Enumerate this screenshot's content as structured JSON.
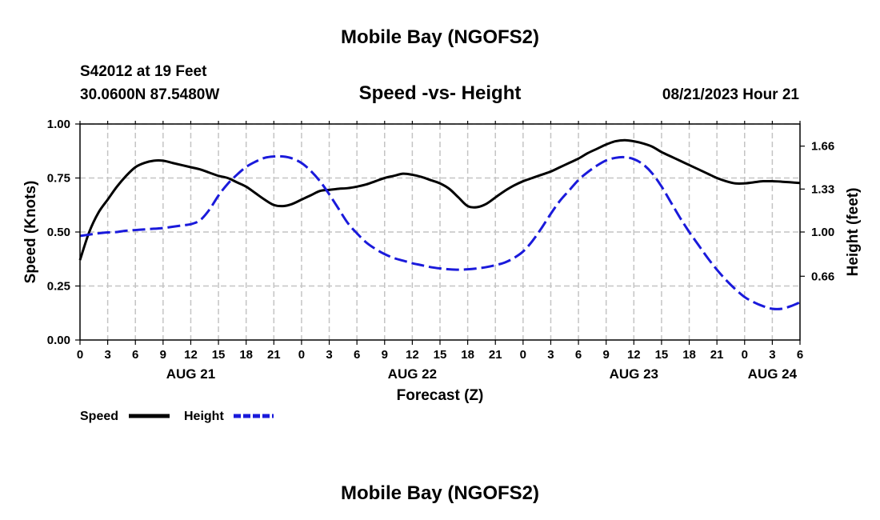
{
  "chart_data": {
    "type": "line",
    "title": "Mobile Bay (NGOFS2)",
    "station": "S42012 at 19 Feet",
    "location": "30.0600N  87.5480W",
    "subtitle": "Speed -vs- Height",
    "date": "08/21/2023 Hour 21",
    "bottom_title": "Mobile Bay (NGOFS2)",
    "xlabel": "Forecast (Z)",
    "ylabel_left": "Speed (Knots)",
    "ylabel_right": "Height (feet)",
    "x_unit": "hours since 08/21 00Z",
    "xlim": [
      0,
      78
    ],
    "ylim_left": [
      0,
      1
    ],
    "ylim_right": [
      0.17,
      1.83
    ],
    "x_ticks": [
      0,
      3,
      6,
      9,
      12,
      15,
      18,
      21,
      24,
      27,
      30,
      33,
      36,
      39,
      42,
      45,
      48,
      51,
      54,
      57,
      60,
      63,
      66,
      69,
      72,
      75,
      78
    ],
    "x_tick_labels": [
      "0",
      "3",
      "6",
      "9",
      "12",
      "15",
      "18",
      "21",
      "0",
      "3",
      "6",
      "9",
      "12",
      "15",
      "18",
      "21",
      "0",
      "3",
      "6",
      "9",
      "12",
      "15",
      "18",
      "21",
      "0",
      "3",
      "6"
    ],
    "day_labels": [
      {
        "x": 12,
        "label": "AUG 21"
      },
      {
        "x": 36,
        "label": "AUG 22"
      },
      {
        "x": 60,
        "label": "AUG 23"
      },
      {
        "x": 75,
        "label": "AUG 24"
      }
    ],
    "y_left_ticks": [
      0,
      0.25,
      0.5,
      0.75,
      1.0
    ],
    "y_left_tick_labels": [
      "0.00",
      "0.25",
      "0.50",
      "0.75",
      "1.00"
    ],
    "y_right_ticks": [
      0.66,
      1.0,
      1.33,
      1.66
    ],
    "y_right_tick_labels": [
      "0.66",
      "1.00",
      "1.33",
      "1.66"
    ],
    "grid": true,
    "legend_position": "bottom-left",
    "series": [
      {
        "name": "Speed",
        "axis": "left",
        "color": "#000000",
        "style": "solid",
        "points": [
          [
            0,
            0.37
          ],
          [
            1,
            0.5
          ],
          [
            2,
            0.59
          ],
          [
            3,
            0.65
          ],
          [
            4,
            0.71
          ],
          [
            5,
            0.76
          ],
          [
            6,
            0.8
          ],
          [
            7,
            0.82
          ],
          [
            8,
            0.83
          ],
          [
            9,
            0.83
          ],
          [
            10,
            0.82
          ],
          [
            11,
            0.81
          ],
          [
            12,
            0.8
          ],
          [
            13,
            0.79
          ],
          [
            14,
            0.775
          ],
          [
            15,
            0.76
          ],
          [
            16,
            0.75
          ],
          [
            17,
            0.73
          ],
          [
            18,
            0.71
          ],
          [
            19,
            0.68
          ],
          [
            20,
            0.65
          ],
          [
            21,
            0.625
          ],
          [
            22,
            0.62
          ],
          [
            23,
            0.63
          ],
          [
            24,
            0.65
          ],
          [
            25,
            0.67
          ],
          [
            26,
            0.69
          ],
          [
            27,
            0.695
          ],
          [
            28,
            0.7
          ],
          [
            29,
            0.703
          ],
          [
            30,
            0.71
          ],
          [
            31,
            0.72
          ],
          [
            32,
            0.735
          ],
          [
            33,
            0.75
          ],
          [
            34,
            0.76
          ],
          [
            35,
            0.77
          ],
          [
            36,
            0.765
          ],
          [
            37,
            0.755
          ],
          [
            38,
            0.74
          ],
          [
            39,
            0.725
          ],
          [
            40,
            0.7
          ],
          [
            41,
            0.66
          ],
          [
            42,
            0.62
          ],
          [
            43,
            0.615
          ],
          [
            44,
            0.63
          ],
          [
            45,
            0.66
          ],
          [
            46,
            0.69
          ],
          [
            47,
            0.715
          ],
          [
            48,
            0.735
          ],
          [
            49,
            0.75
          ],
          [
            50,
            0.765
          ],
          [
            51,
            0.78
          ],
          [
            52,
            0.8
          ],
          [
            53,
            0.82
          ],
          [
            54,
            0.84
          ],
          [
            55,
            0.865
          ],
          [
            56,
            0.885
          ],
          [
            57,
            0.905
          ],
          [
            58,
            0.92
          ],
          [
            59,
            0.925
          ],
          [
            60,
            0.92
          ],
          [
            61,
            0.91
          ],
          [
            62,
            0.895
          ],
          [
            63,
            0.87
          ],
          [
            64,
            0.85
          ],
          [
            65,
            0.83
          ],
          [
            66,
            0.81
          ],
          [
            67,
            0.79
          ],
          [
            68,
            0.77
          ],
          [
            69,
            0.75
          ],
          [
            70,
            0.735
          ],
          [
            71,
            0.725
          ],
          [
            72,
            0.725
          ],
          [
            73,
            0.73
          ],
          [
            74,
            0.735
          ],
          [
            75,
            0.735
          ],
          [
            76,
            0.733
          ],
          [
            77,
            0.73
          ],
          [
            78,
            0.727
          ]
        ]
      },
      {
        "name": "Height",
        "axis": "right",
        "color": "#1a1adb",
        "style": "dashed",
        "points": [
          [
            0,
            0.97
          ],
          [
            1,
            0.98
          ],
          [
            2,
            0.99
          ],
          [
            3,
            0.997
          ],
          [
            4,
            1.0
          ],
          [
            5,
            1.01
          ],
          [
            6,
            1.015
          ],
          [
            7,
            1.02
          ],
          [
            8,
            1.025
          ],
          [
            9,
            1.03
          ],
          [
            10,
            1.04
          ],
          [
            11,
            1.05
          ],
          [
            12,
            1.06
          ],
          [
            13,
            1.09
          ],
          [
            14,
            1.17
          ],
          [
            15,
            1.28
          ],
          [
            16,
            1.37
          ],
          [
            17,
            1.44
          ],
          [
            18,
            1.5
          ],
          [
            19,
            1.54
          ],
          [
            20,
            1.57
          ],
          [
            21,
            1.58
          ],
          [
            22,
            1.58
          ],
          [
            23,
            1.565
          ],
          [
            24,
            1.53
          ],
          [
            25,
            1.47
          ],
          [
            26,
            1.39
          ],
          [
            27,
            1.29
          ],
          [
            28,
            1.18
          ],
          [
            29,
            1.07
          ],
          [
            30,
            0.99
          ],
          [
            31,
            0.92
          ],
          [
            32,
            0.87
          ],
          [
            33,
            0.83
          ],
          [
            34,
            0.8
          ],
          [
            35,
            0.78
          ],
          [
            36,
            0.76
          ],
          [
            37,
            0.745
          ],
          [
            38,
            0.73
          ],
          [
            39,
            0.72
          ],
          [
            40,
            0.713
          ],
          [
            41,
            0.71
          ],
          [
            42,
            0.713
          ],
          [
            43,
            0.72
          ],
          [
            44,
            0.73
          ],
          [
            45,
            0.745
          ],
          [
            46,
            0.765
          ],
          [
            47,
            0.8
          ],
          [
            48,
            0.85
          ],
          [
            49,
            0.93
          ],
          [
            50,
            1.03
          ],
          [
            51,
            1.14
          ],
          [
            52,
            1.24
          ],
          [
            53,
            1.32
          ],
          [
            54,
            1.4
          ],
          [
            55,
            1.46
          ],
          [
            56,
            1.51
          ],
          [
            57,
            1.55
          ],
          [
            58,
            1.57
          ],
          [
            59,
            1.575
          ],
          [
            60,
            1.56
          ],
          [
            61,
            1.52
          ],
          [
            62,
            1.45
          ],
          [
            63,
            1.35
          ],
          [
            64,
            1.23
          ],
          [
            65,
            1.11
          ],
          [
            66,
            1.0
          ],
          [
            67,
            0.9
          ],
          [
            68,
            0.8
          ],
          [
            69,
            0.71
          ],
          [
            70,
            0.63
          ],
          [
            71,
            0.56
          ],
          [
            72,
            0.5
          ],
          [
            73,
            0.46
          ],
          [
            74,
            0.43
          ],
          [
            75,
            0.41
          ],
          [
            76,
            0.41
          ],
          [
            77,
            0.43
          ],
          [
            78,
            0.46
          ]
        ]
      }
    ],
    "legend": [
      {
        "label": "Speed",
        "color": "#000000",
        "style": "solid"
      },
      {
        "label": "Height",
        "color": "#1a1adb",
        "style": "dashed"
      }
    ]
  }
}
